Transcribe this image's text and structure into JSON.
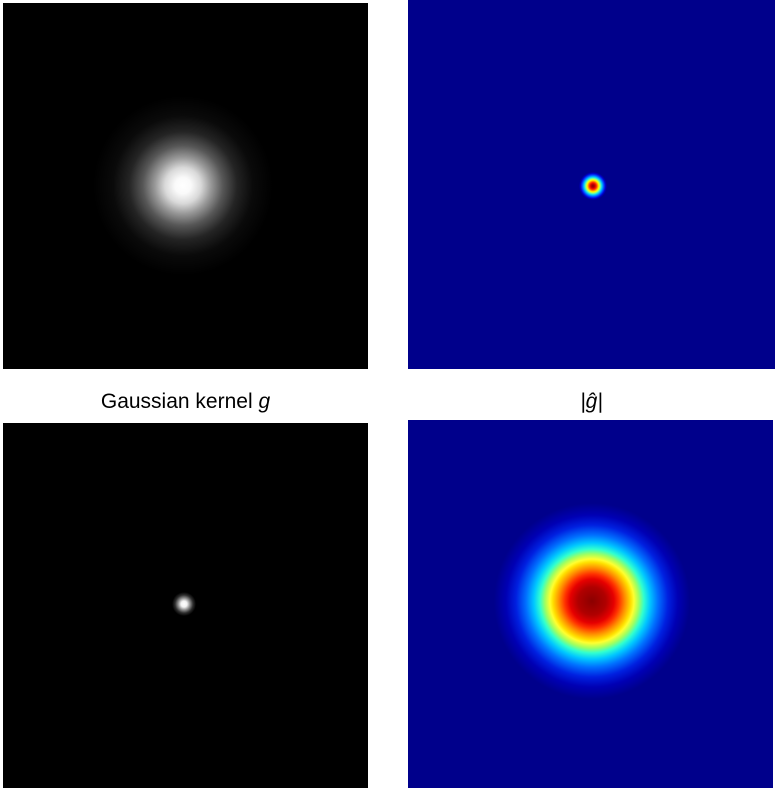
{
  "figure": {
    "captions": {
      "gaussian_kernel_text": "Gaussian kernel ",
      "gaussian_kernel_symbol": "g",
      "fourier_magnitude": "|ĝ|"
    },
    "panels": [
      {
        "id": "wide-gaussian-kernel",
        "colormap": "gray",
        "background": "#000000"
      },
      {
        "id": "narrow-fourier-magnitude",
        "colormap": "jet",
        "background": "#00008b"
      },
      {
        "id": "narrow-gaussian-kernel",
        "colormap": "gray",
        "background": "#000000"
      },
      {
        "id": "wide-fourier-magnitude",
        "colormap": "jet",
        "background": "#00008b"
      }
    ],
    "colors": {
      "jet_low": "#00008b",
      "jet_high": "#8b0000",
      "gray_low": "#000000",
      "gray_high": "#ffffff"
    }
  }
}
